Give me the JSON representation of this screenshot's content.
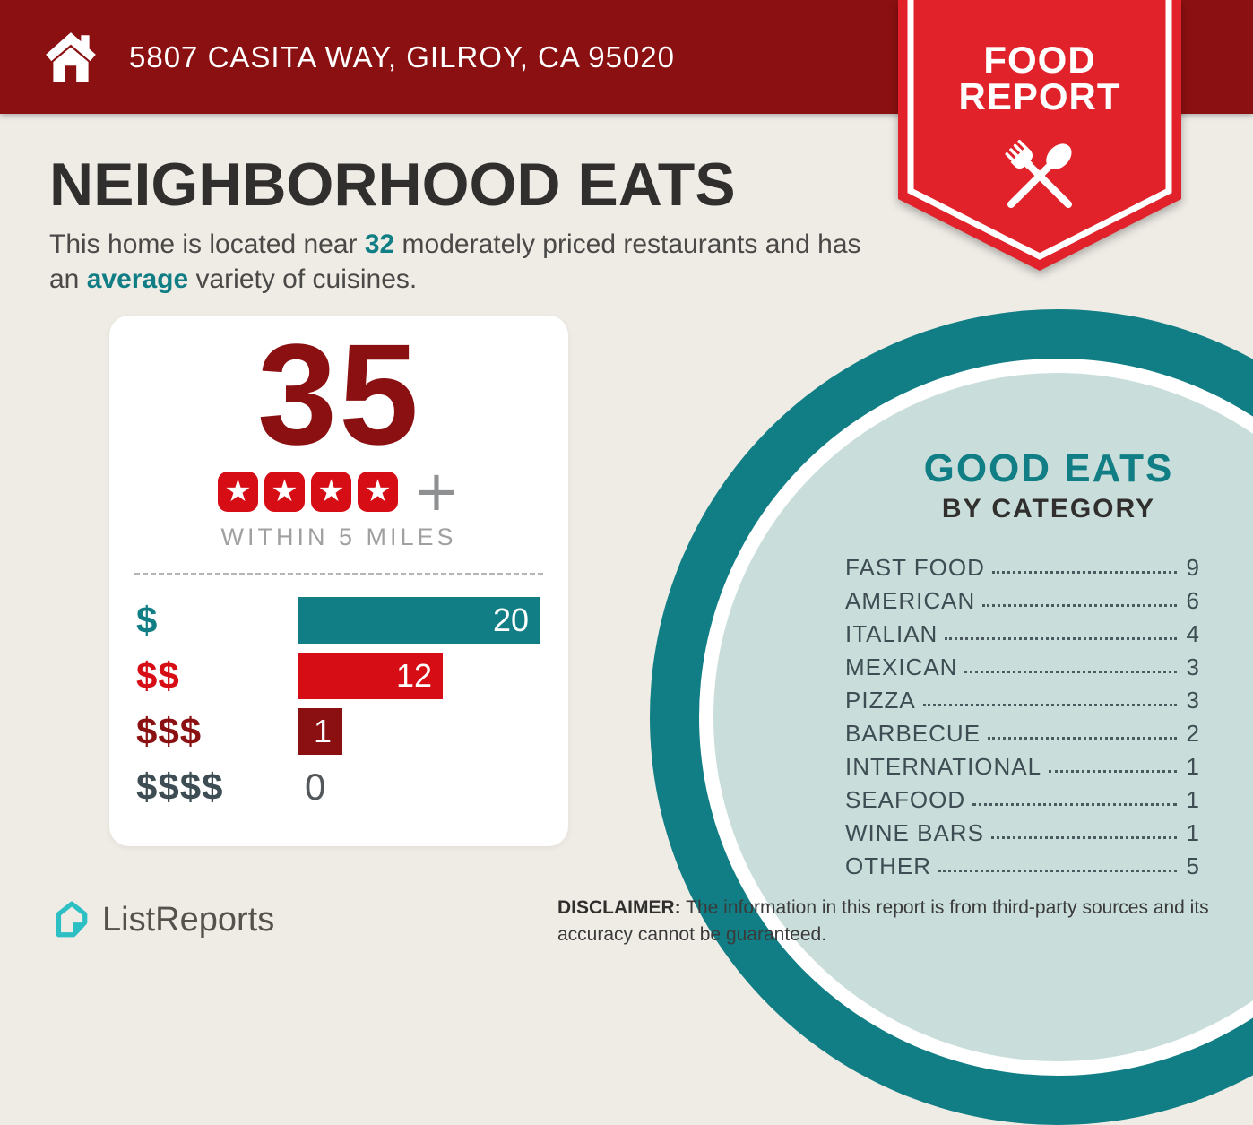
{
  "colors": {
    "banner_dark_red": "#8B1011",
    "ribbon_red": "#E1222A",
    "bright_red": "#D70D15",
    "teal": "#107E84",
    "light_teal_fill": "#C9DEDB",
    "background_beige": "#EFECE6",
    "logo_teal": "#2CBFC4"
  },
  "header": {
    "address": "5807 CASITA WAY, GILROY, CA 95020"
  },
  "ribbon": {
    "line1": "FOOD",
    "line2": "REPORT"
  },
  "main": {
    "title": "NEIGHBORHOOD EATS",
    "intro_part1": "This home is located near ",
    "intro_count": "32",
    "intro_part2": " moderately priced restaurants and has an ",
    "intro_highlight": "average",
    "intro_part3": " variety of cuisines."
  },
  "stats": {
    "count": "35",
    "rating_stars": 4,
    "plus": "+",
    "radius_label": "WITHIN 5 MILES"
  },
  "chart_data": [
    {
      "type": "bar",
      "title": "Restaurants by price tier within 5 miles",
      "orientation": "horizontal",
      "categories": [
        "$",
        "$$",
        "$$$",
        "$$$$"
      ],
      "values": [
        20,
        12,
        1,
        0
      ],
      "bar_colors": [
        "#107E84",
        "#D70D15",
        "#8B1011",
        null
      ],
      "xlim": [
        0,
        20
      ],
      "value_labels_inside_bars": true
    },
    {
      "type": "table",
      "title": "GOOD EATS BY CATEGORY",
      "categories": [
        "FAST FOOD",
        "AMERICAN",
        "ITALIAN",
        "MEXICAN",
        "PIZZA",
        "BARBECUE",
        "INTERNATIONAL",
        "SEAFOOD",
        "WINE BARS",
        "OTHER"
      ],
      "values": [
        9,
        6,
        4,
        3,
        3,
        2,
        1,
        1,
        1,
        5
      ]
    }
  ],
  "good_eats": {
    "title": "GOOD EATS",
    "subtitle": "BY CATEGORY"
  },
  "footer": {
    "brand": "ListReports",
    "disclaimer_label": "DISCLAIMER:",
    "disclaimer_text": " The information in this report is from third-party sources and its accuracy cannot be guaranteed."
  }
}
